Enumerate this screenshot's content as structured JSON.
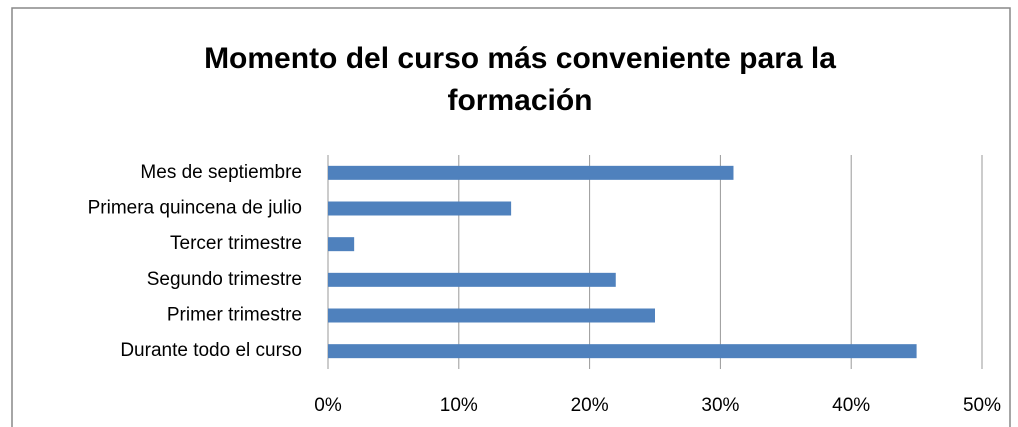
{
  "chart_data": {
    "type": "bar",
    "orientation": "horizontal",
    "title": "Momento del curso más conveniente para la formación",
    "categories": [
      "Mes de septiembre",
      "Primera quincena de julio",
      "Tercer trimestre",
      "Segundo trimestre",
      "Primer trimestre",
      "Durante todo el curso"
    ],
    "values": [
      31,
      14,
      2,
      22,
      25,
      45
    ],
    "color": "#4f81bd",
    "xlim": [
      0,
      50
    ],
    "xticks": [
      {
        "value": 0,
        "label": "0%"
      },
      {
        "value": 10,
        "label": "10%"
      },
      {
        "value": 20,
        "label": "20%"
      },
      {
        "value": 30,
        "label": "30%"
      },
      {
        "value": 40,
        "label": "40%"
      },
      {
        "value": 50,
        "label": "50%"
      }
    ],
    "grid": true
  }
}
